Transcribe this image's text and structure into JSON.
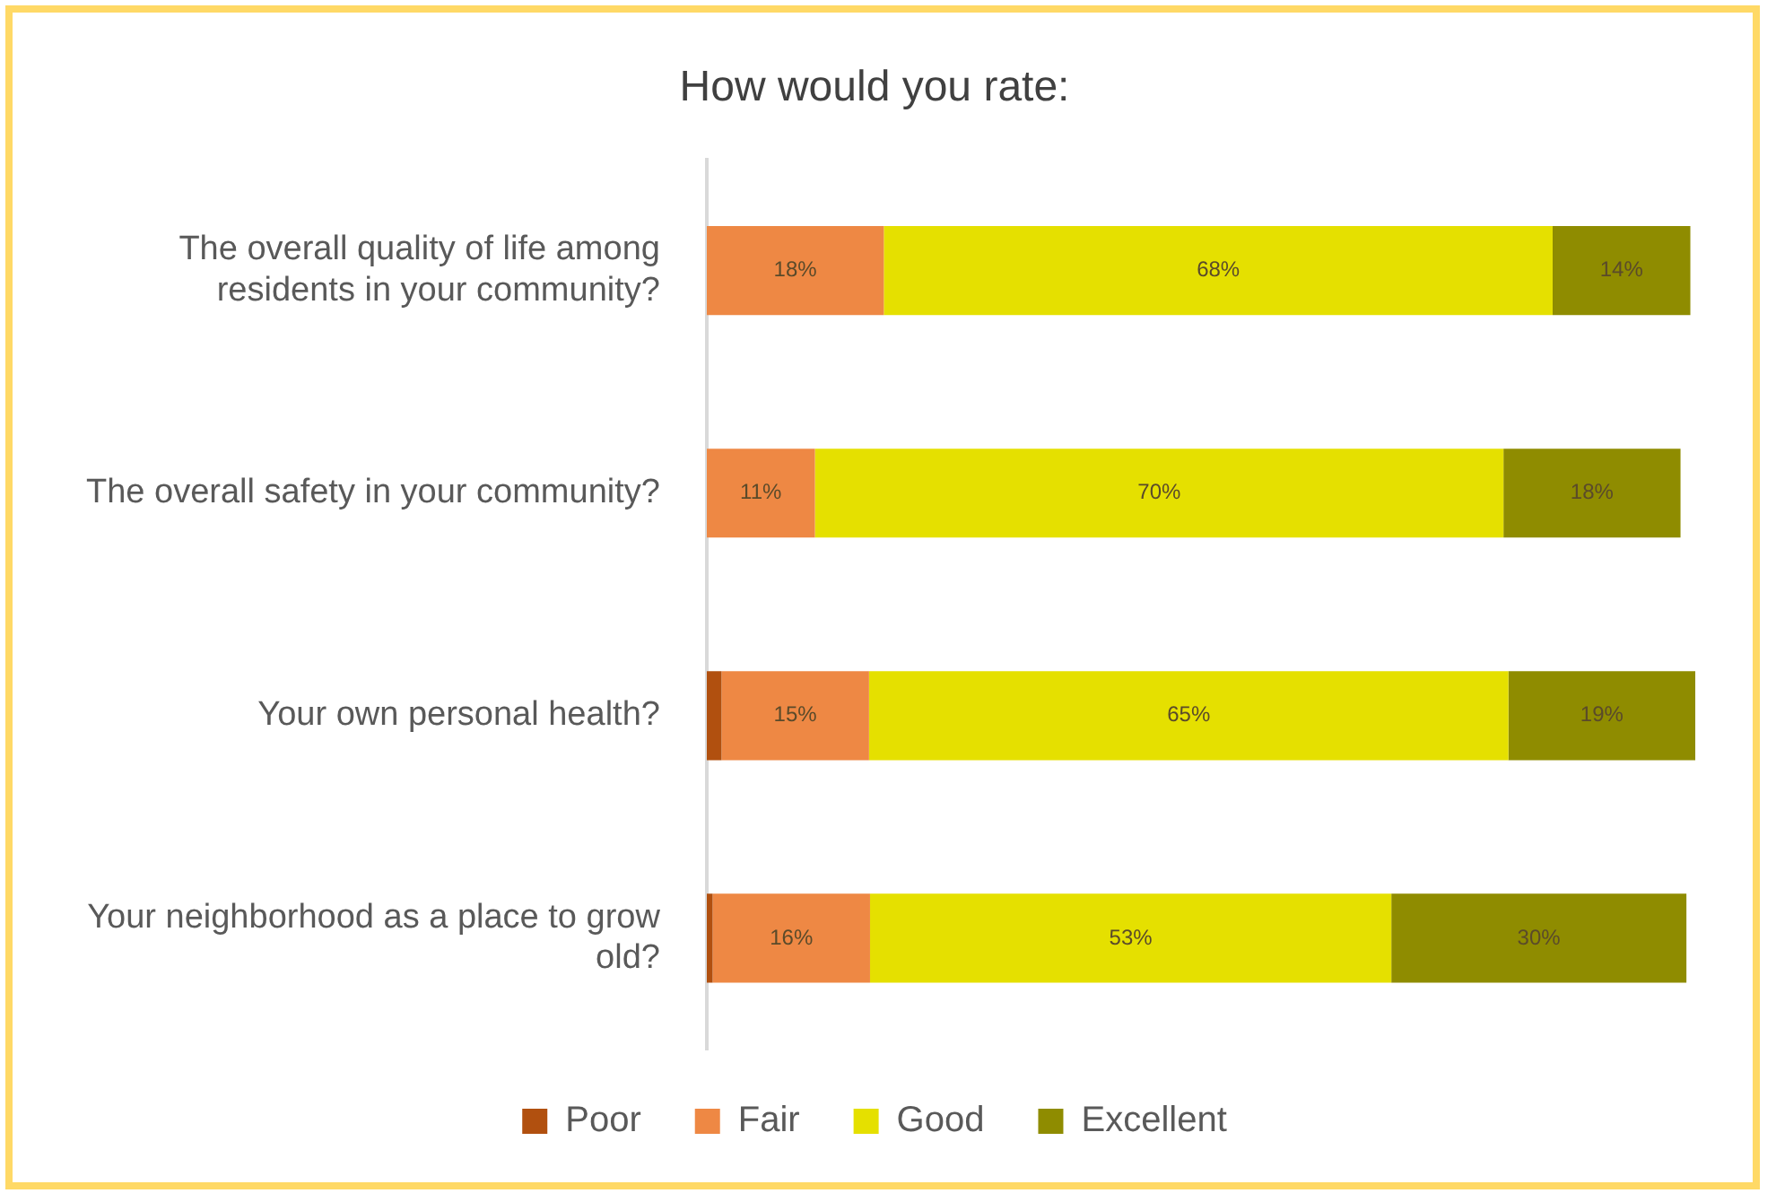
{
  "chart_data": {
    "type": "bar",
    "orientation": "horizontal",
    "stacked": true,
    "title": "How would you rate:",
    "categories": [
      "The overall quality of life among residents in your community?",
      "The overall safety in your community?",
      "Your own personal health?",
      "Your neighborhood as a place to grow old?"
    ],
    "series": [
      {
        "name": "Poor",
        "color": "#b1500f",
        "values": [
          0,
          0,
          1.5,
          0.6
        ],
        "value_labels": [
          null,
          null,
          null,
          null
        ]
      },
      {
        "name": "Fair",
        "color": "#ee8844",
        "values": [
          18,
          11,
          15,
          16
        ],
        "value_labels": [
          "18%",
          "11%",
          "15%",
          "16%"
        ]
      },
      {
        "name": "Good",
        "color": "#e5e000",
        "values": [
          68,
          70,
          65,
          53
        ],
        "value_labels": [
          "68%",
          "70%",
          "65%",
          "53%"
        ]
      },
      {
        "name": "Excellent",
        "color": "#8f8c00",
        "values": [
          14,
          18,
          19,
          30
        ],
        "value_labels": [
          "14%",
          "18%",
          "19%",
          "30%"
        ]
      }
    ],
    "legend": "bottom",
    "tick_labels": "y"
  }
}
